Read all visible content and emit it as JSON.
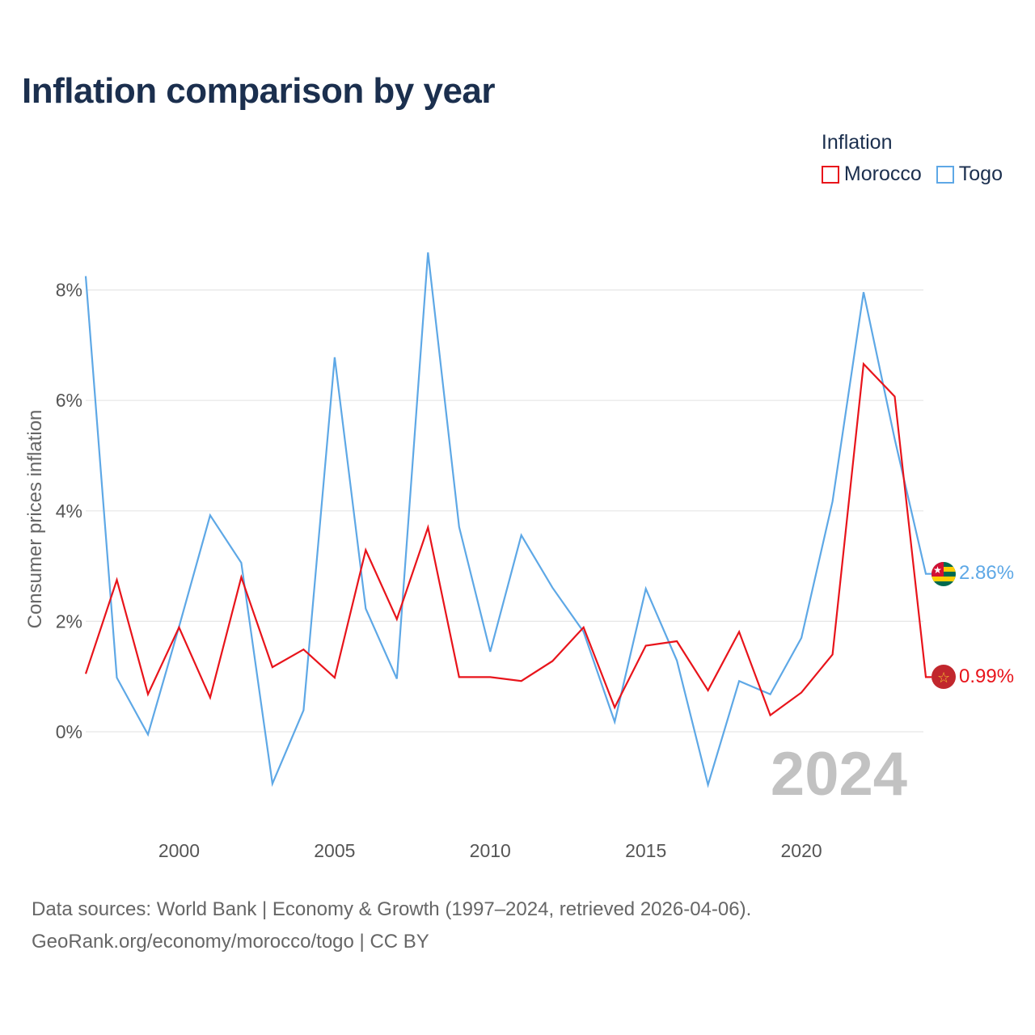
{
  "chart_data": {
    "type": "line",
    "title": "Inflation comparison by year",
    "legend_title": "Inflation",
    "ylabel": "Consumer prices inflation",
    "xlabel": "",
    "xlim": [
      1997,
      2024
    ],
    "ylim": [
      -1.5,
      9
    ],
    "y_ticks": [
      0,
      2,
      4,
      6,
      8
    ],
    "y_tick_labels": [
      "0%",
      "2%",
      "4%",
      "6%",
      "8%"
    ],
    "x_ticks": [
      2000,
      2005,
      2010,
      2015,
      2020
    ],
    "x_tick_labels": [
      "2000",
      "2005",
      "2010",
      "2015",
      "2020"
    ],
    "x": [
      1997,
      1998,
      1999,
      2000,
      2001,
      2002,
      2003,
      2004,
      2005,
      2006,
      2007,
      2008,
      2009,
      2010,
      2011,
      2012,
      2013,
      2014,
      2015,
      2016,
      2017,
      2018,
      2019,
      2020,
      2021,
      2022,
      2023,
      2024
    ],
    "series": [
      {
        "name": "Morocco",
        "color": "#e8141b",
        "end_label": "0.99%",
        "values": [
          1.05,
          2.75,
          0.68,
          1.89,
          0.62,
          2.8,
          1.17,
          1.49,
          0.98,
          3.29,
          2.04,
          3.7,
          0.99,
          0.99,
          0.92,
          1.28,
          1.89,
          0.44,
          1.56,
          1.64,
          0.75,
          1.81,
          0.3,
          0.71,
          1.4,
          6.66,
          6.07,
          0.99
        ]
      },
      {
        "name": "Togo",
        "color": "#5ea8e6",
        "end_label": "2.86%",
        "values": [
          8.25,
          0.98,
          -0.05,
          1.9,
          3.92,
          3.06,
          -0.94,
          0.39,
          6.78,
          2.23,
          0.96,
          8.68,
          3.71,
          1.45,
          3.56,
          2.61,
          1.81,
          0.18,
          2.59,
          1.29,
          -0.96,
          0.92,
          0.68,
          1.7,
          4.17,
          7.96,
          5.3,
          2.86
        ]
      }
    ],
    "watermark_year": "2024"
  },
  "footer": {
    "line1": "Data sources: World Bank | Economy & Growth (1997–2024, retrieved 2026-04-06).",
    "line2": "GeoRank.org/economy/morocco/togo | CC BY"
  }
}
